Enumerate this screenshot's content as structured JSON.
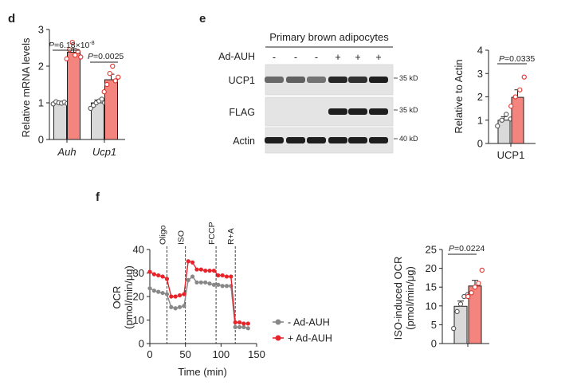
{
  "panels": {
    "d": "d",
    "e": "e",
    "f": "f"
  },
  "colors": {
    "minus": "#d9d9d9",
    "plus": "#f4847e",
    "plus_dot": "#e0302a",
    "line_minus": "#888888",
    "line_plus": "#e8232a",
    "axis": "#222222"
  },
  "blot": {
    "header": "Primary brown adipocytes",
    "row_label": "Ad-AUH",
    "lanes": [
      "-",
      "-",
      "-",
      "+",
      "+",
      "+"
    ],
    "bands": [
      {
        "name": "UCP1",
        "marker": "35 kD",
        "intensity": [
          0.55,
          0.6,
          0.5,
          0.9,
          0.85,
          0.95
        ]
      },
      {
        "name": "FLAG",
        "marker": "35 kD",
        "intensity": [
          0.0,
          0.0,
          0.0,
          0.95,
          0.95,
          0.95
        ]
      },
      {
        "name": "Actin",
        "marker": "40 kD",
        "intensity": [
          0.95,
          0.95,
          0.95,
          0.95,
          0.95,
          0.95
        ]
      }
    ]
  },
  "chart_data": [
    {
      "type": "bar",
      "panel": "d",
      "ylabel": "Relative mRNA levels",
      "ylim": [
        0,
        3
      ],
      "yticks": [
        "0",
        "1",
        "2",
        "3"
      ],
      "categories": [
        "Auh",
        "Ucp1"
      ],
      "series": [
        {
          "values": [
            1.0,
            1.0
          ],
          "errors": [
            0.04,
            0.08
          ],
          "points": [
            [
              0.97,
              1.03,
              1.0,
              0.99,
              1.02,
              0.98
            ],
            [
              0.85,
              0.93,
              1.0,
              1.05,
              1.1,
              1.0
            ]
          ]
        },
        {
          "values": [
            2.38,
            1.63
          ],
          "errors": [
            0.1,
            0.15
          ],
          "points": [
            [
              2.2,
              2.45,
              2.65,
              2.3,
              2.4,
              2.25
            ],
            [
              1.3,
              1.5,
              1.8,
              2.0,
              1.6,
              1.7
            ]
          ]
        }
      ],
      "annotations": [
        {
          "p_label": "P",
          "text": "=6.18×10",
          "sup": "-8"
        },
        {
          "p_label": "P",
          "text": "=0.0025",
          "sup": ""
        }
      ]
    },
    {
      "type": "bar",
      "panel": "e",
      "ylabel": "Relative to Actin",
      "ylim": [
        0,
        4
      ],
      "yticks": [
        "0",
        "1",
        "2",
        "3",
        "4"
      ],
      "categories": [
        "UCP1"
      ],
      "series": [
        {
          "values": [
            1.0
          ],
          "errors": [
            0.15
          ],
          "points": [
            [
              0.75,
              1.0,
              1.25,
              1.05
            ]
          ]
        },
        {
          "values": [
            1.98
          ],
          "errors": [
            0.32
          ],
          "points": [
            [
              1.6,
              2.0,
              2.3,
              2.85
            ]
          ]
        }
      ],
      "annotations": [
        {
          "p_label": "P",
          "text": "=0.0335",
          "sup": ""
        }
      ]
    },
    {
      "type": "line",
      "panel": "f",
      "xlabel": "Time (min)",
      "ylabel": "OCR",
      "ylabel2": "(pmol/min/μg)",
      "xlim": [
        0,
        150
      ],
      "ylim": [
        0,
        40
      ],
      "xticks": [
        "0",
        "50",
        "100",
        "150"
      ],
      "yticks": [
        "0",
        "10",
        "20",
        "30",
        "40"
      ],
      "injections": [
        {
          "label": "Oligo",
          "x": 24
        },
        {
          "label": "ISO",
          "x": 50
        },
        {
          "label": "FCCP",
          "x": 93
        },
        {
          "label": "R+A",
          "x": 120
        }
      ],
      "series": [
        {
          "name": "- Ad-AUH",
          "x": [
            0,
            6,
            12,
            18,
            24,
            30,
            36,
            42,
            48,
            54,
            60,
            66,
            72,
            78,
            84,
            90,
            96,
            102,
            108,
            114,
            120,
            126,
            132,
            138
          ],
          "y": [
            23.5,
            22.5,
            22,
            21.5,
            21,
            15.5,
            15,
            15.5,
            16,
            27,
            28.5,
            26,
            26,
            26,
            25.5,
            25,
            25,
            24.5,
            24.5,
            24.5,
            7,
            7,
            7,
            6.5
          ]
        },
        {
          "name": "+ Ad-AUH",
          "x": [
            0,
            6,
            12,
            18,
            24,
            30,
            36,
            42,
            48,
            54,
            60,
            66,
            72,
            78,
            84,
            90,
            96,
            102,
            108,
            114,
            120,
            126,
            132,
            138
          ],
          "y": [
            30.5,
            29.5,
            29,
            28.5,
            27.5,
            20,
            20,
            20.5,
            21,
            35,
            34.5,
            31.5,
            31.5,
            31,
            31,
            31,
            29,
            29,
            28.5,
            28.5,
            9,
            9,
            8.5,
            8.5
          ]
        }
      ]
    },
    {
      "type": "bar",
      "panel": "f",
      "ylabel": "ISO-induced OCR",
      "ylabel2": "(pmol/min/μg)",
      "ylim": [
        0,
        25
      ],
      "yticks": [
        "0",
        "5",
        "10",
        "15",
        "20",
        "25"
      ],
      "categories": [
        ""
      ],
      "series": [
        {
          "values": [
            9.9
          ],
          "errors": [
            1.4
          ],
          "points": [
            [
              4.0,
              8.5,
              10.5,
              12.5,
              13.0
            ]
          ]
        },
        {
          "values": [
            15.3
          ],
          "errors": [
            1.5
          ],
          "points": [
            [
              12.5,
              13.5,
              15.0,
              16.0,
              19.5
            ]
          ]
        }
      ],
      "annotations": [
        {
          "p_label": "P",
          "text": "=0.0224",
          "sup": ""
        }
      ]
    }
  ]
}
